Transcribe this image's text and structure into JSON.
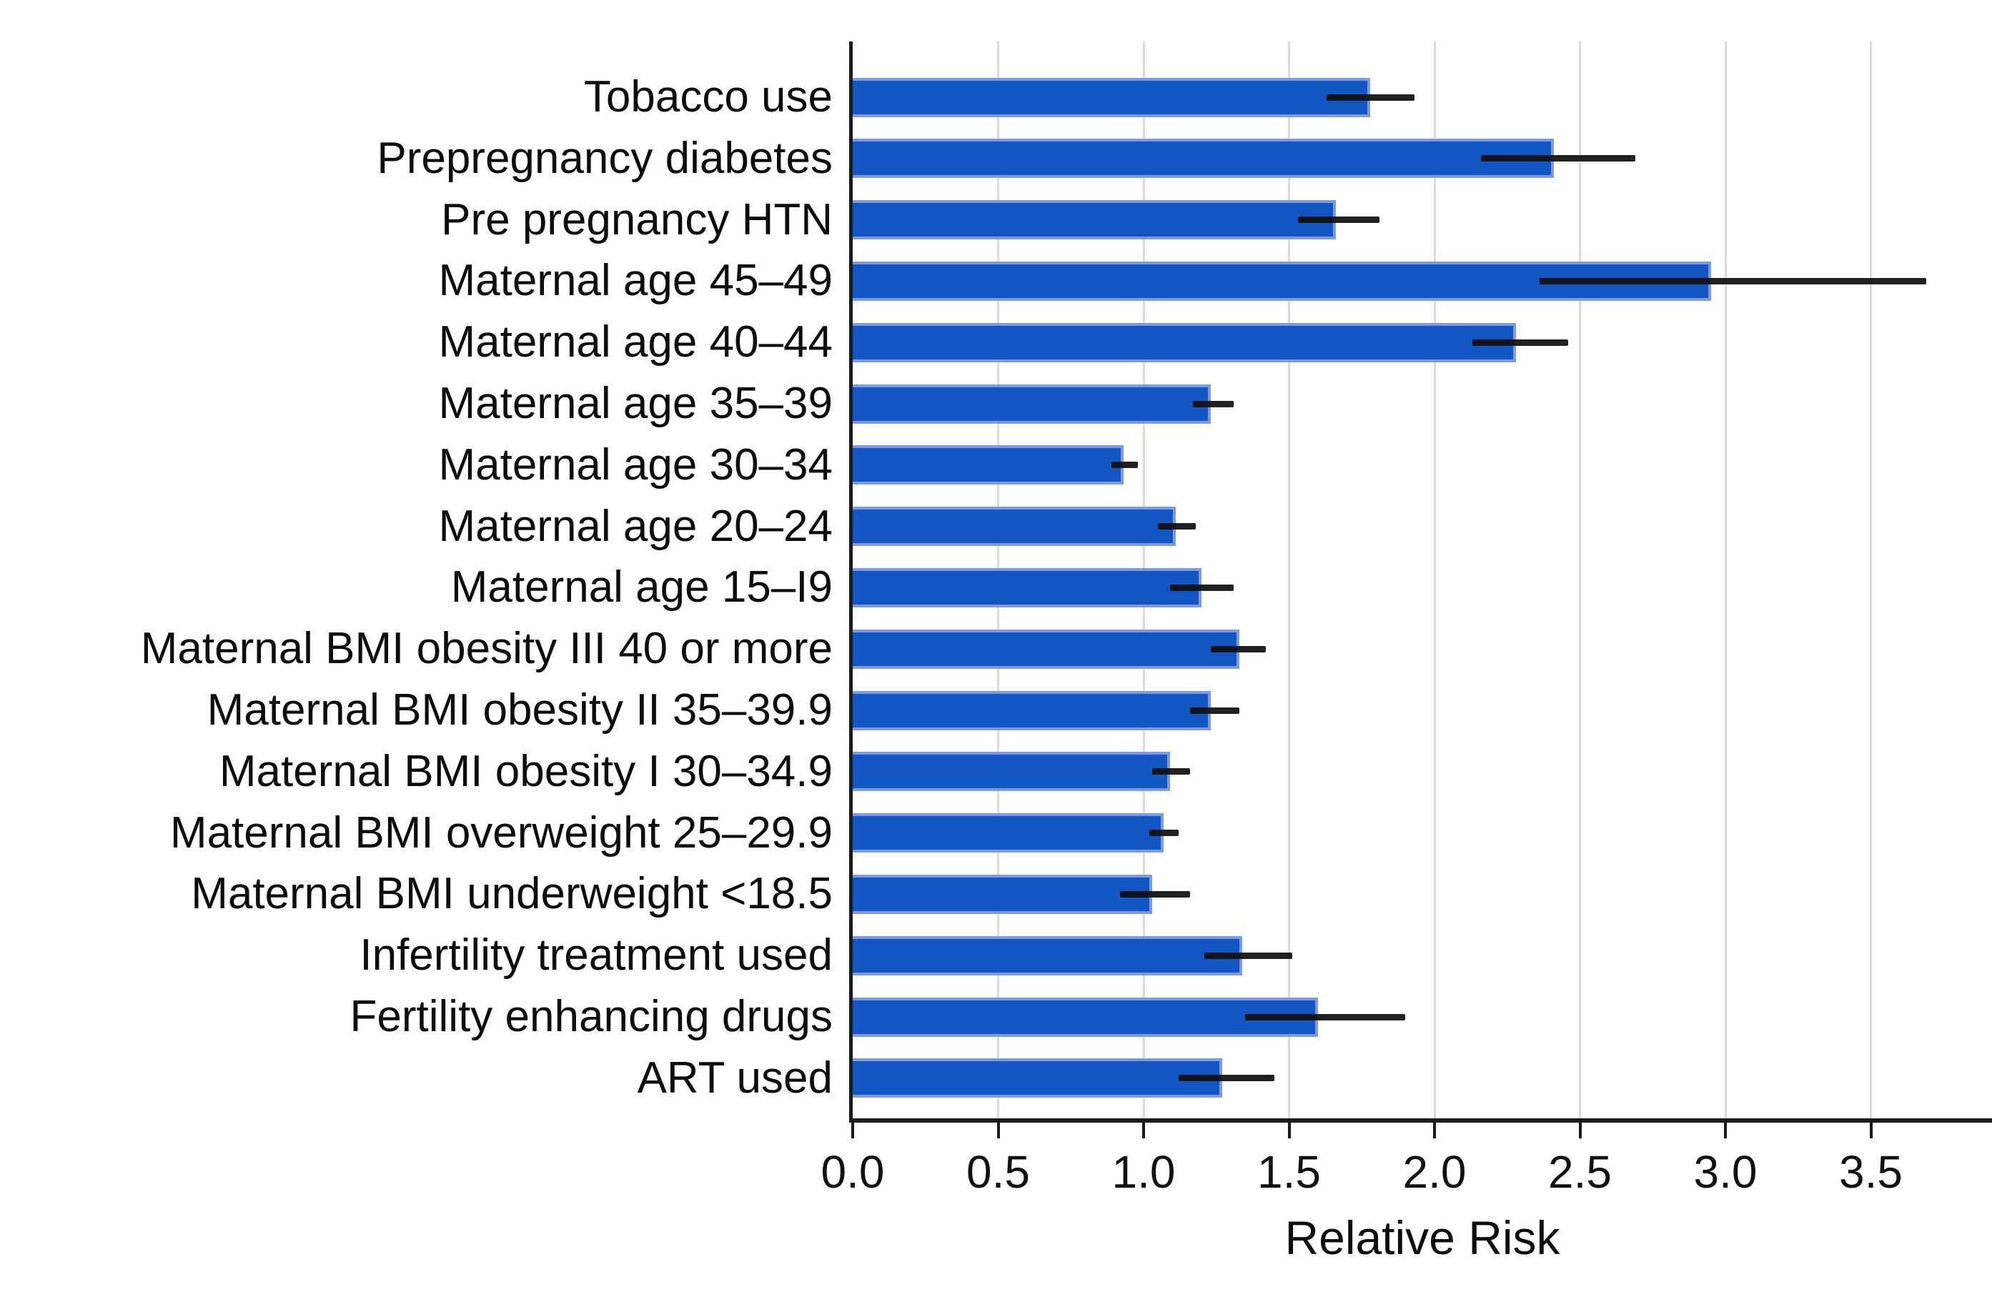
{
  "figure": {
    "background_color": "#ffffff",
    "text_color": "#111111"
  },
  "chart_data": {
    "type": "bar",
    "orientation": "horizontal",
    "title": "",
    "xlabel": "Relative Risk",
    "ylabel": "",
    "xlim": [
      0,
      3.9
    ],
    "xticks": [
      "0.0",
      "0.5",
      "1.0",
      "1.5",
      "2.0",
      "2.5",
      "3.0",
      "3.5"
    ],
    "grid": "vertical light-gray gridlines every 0.5, no legend",
    "bar_color": "#1256c4",
    "bar_edge_color": "#7e9ade",
    "error_bar_color": "#101010",
    "categories": [
      "Tobacco use",
      "Prepregnancy diabetes",
      "Pre pregnancy HTN",
      "Maternal age 45–49",
      "Maternal age 40–44",
      "Maternal age 35–39",
      "Maternal age 30–34",
      "Maternal age 20–24",
      "Maternal age 15–I9",
      "Maternal BMI obesity III 40 or more",
      "Maternal BMI obesity II 35–39.9",
      "Maternal BMI obesity I 30–34.9",
      "Maternal BMI overweight 25–29.9",
      "Maternal BMI underweight <18.5",
      "Infertility treatment used",
      "Fertility enhancing drugs",
      "ART used"
    ],
    "series": [
      {
        "name": "Relative Risk",
        "values": [
          1.78,
          2.41,
          1.66,
          2.95,
          2.28,
          1.23,
          0.93,
          1.11,
          1.2,
          1.33,
          1.23,
          1.09,
          1.07,
          1.03,
          1.34,
          1.6,
          1.27
        ]
      }
    ],
    "error_low": [
      1.63,
      2.16,
      1.53,
      2.36,
      2.13,
      1.17,
      0.89,
      1.05,
      1.09,
      1.23,
      1.16,
      1.03,
      1.02,
      0.92,
      1.21,
      1.35,
      1.12
    ],
    "error_high": [
      1.93,
      2.69,
      1.81,
      3.69,
      2.46,
      1.31,
      0.98,
      1.18,
      1.31,
      1.42,
      1.33,
      1.16,
      1.12,
      1.16,
      1.51,
      1.9,
      1.45
    ]
  }
}
